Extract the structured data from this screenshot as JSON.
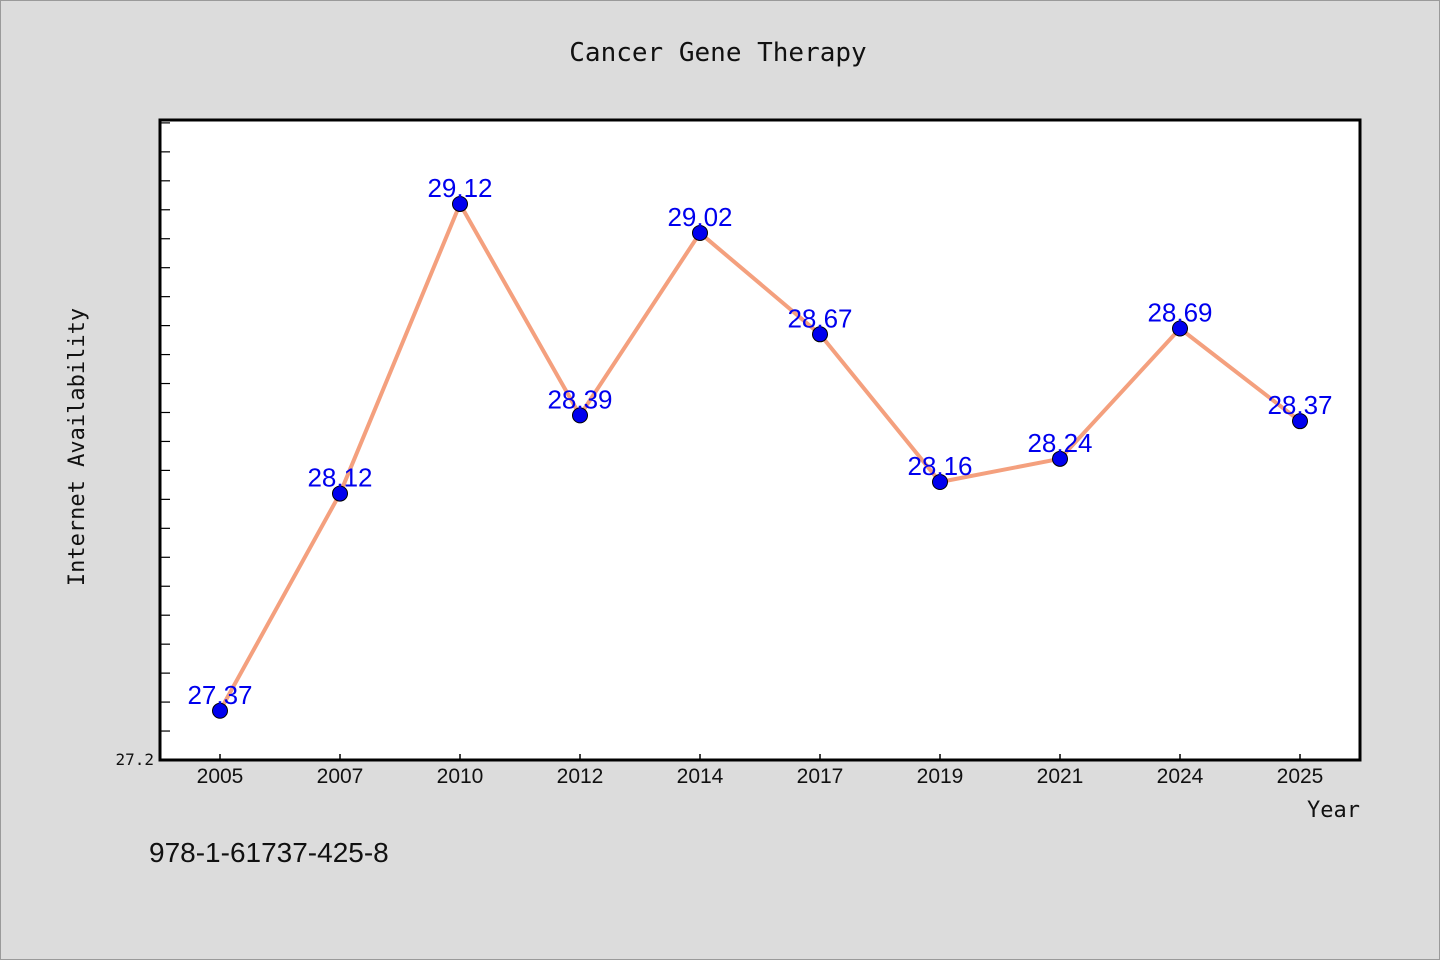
{
  "chart_data": {
    "type": "line",
    "title": "Cancer Gene Therapy",
    "xlabel": "Year",
    "ylabel": "Internet Availability",
    "categories": [
      "2005",
      "2007",
      "2010",
      "2012",
      "2014",
      "2017",
      "2019",
      "2021",
      "2024",
      "2025"
    ],
    "series": [
      {
        "values": [
          27.37,
          28.12,
          29.12,
          28.39,
          29.02,
          28.67,
          28.16,
          28.24,
          28.69,
          28.37
        ],
        "data_labels": [
          "27.37",
          "28.12",
          "29.12",
          "28.39",
          "29.02",
          "28.67",
          "28.16",
          "28.24",
          "28.69",
          "28.37"
        ]
      }
    ],
    "ylim": [
      27.2,
      29.41
    ],
    "yticks_labeled": [
      {
        "value": 27.2,
        "label": "27.2"
      }
    ],
    "minor_tick_step": 0.1,
    "grid": false,
    "legend": "none",
    "colors": {
      "line": "#f4a07e",
      "marker": "#0000ee",
      "label": "#0000ee",
      "plot_bg": "#ffffff",
      "page_bg": "#dcdcdc"
    }
  },
  "footer_text": "978-1-61737-425-8"
}
